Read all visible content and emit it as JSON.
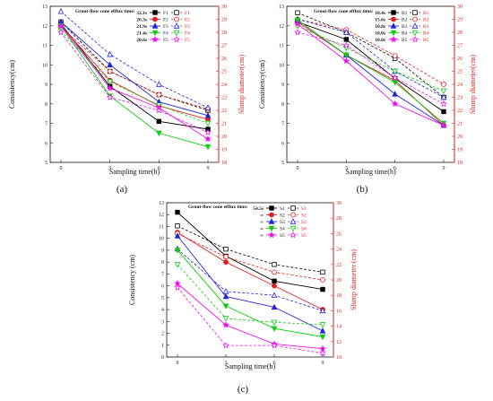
{
  "chart_data": [
    {
      "type": "line",
      "caption": "(a)",
      "xlabel": "Sampling time(h)",
      "ylabel": "Consistency(cm)",
      "y2label": "Slump diameter(cm)",
      "x": [
        0,
        3,
        6,
        9
      ],
      "xticks": [
        "0",
        "3",
        "6",
        "9"
      ],
      "ylim": [
        5,
        13
      ],
      "yticks": [
        "5",
        "6",
        "7",
        "8",
        "9",
        "10",
        "11",
        "12",
        "13"
      ],
      "y2lim": [
        18,
        30
      ],
      "y2ticks": [
        "18",
        "19",
        "20",
        "21",
        "22",
        "23",
        "24",
        "25",
        "26",
        "27",
        "28",
        "29",
        "30"
      ],
      "legend": {
        "title": "Grout-flow cone efflux time:",
        "times": [
          "32.1s",
          "26.3s",
          "21.9s",
          "21.4s",
          "20.6s"
        ],
        "placement": "top-right"
      },
      "series": [
        {
          "name": "F1",
          "color": "#000000",
          "marker": "square",
          "consistency": [
            12.1,
            8.9,
            7.1,
            6.7
          ],
          "slump": [
            28.8,
            25.0,
            23.2,
            22.0
          ]
        },
        {
          "name": "F2",
          "color": "#e02020",
          "marker": "circle",
          "consistency": [
            12.0,
            9.2,
            7.9,
            7.2
          ],
          "slump": [
            28.4,
            25.0,
            23.2,
            22.1
          ]
        },
        {
          "name": "F3",
          "color": "#2222dd",
          "marker": "triangle-up",
          "consistency": [
            12.2,
            10.0,
            8.1,
            7.4
          ],
          "slump": [
            29.6,
            26.3,
            24.0,
            22.2
          ]
        },
        {
          "name": "F4",
          "color": "#11cc11",
          "marker": "triangle-down",
          "consistency": [
            12.0,
            8.4,
            6.5,
            5.8
          ],
          "slump": [
            28.1,
            24.2,
            22.4,
            21.0
          ]
        },
        {
          "name": "F5",
          "color": "#ee11ee",
          "marker": "star",
          "consistency": [
            12.0,
            8.8,
            7.8,
            6.2
          ],
          "slump": [
            28.0,
            23.0,
            22.0,
            20.3
          ]
        }
      ]
    },
    {
      "type": "line",
      "caption": "(b)",
      "xlabel": "Sampling time(h)",
      "ylabel": "Consistency(cm)",
      "y2label": "Slump diameter(cm)",
      "x": [
        0,
        3,
        6,
        9
      ],
      "xticks": [
        "0",
        "3",
        "6",
        "9"
      ],
      "ylim": [
        5,
        13
      ],
      "yticks": [
        "5",
        "6",
        "7",
        "8",
        "9",
        "10",
        "11",
        "12",
        "13"
      ],
      "y2lim": [
        18,
        30
      ],
      "y2ticks": [
        "18",
        "19",
        "20",
        "21",
        "22",
        "23",
        "24",
        "25",
        "26",
        "27",
        "28",
        "29",
        "30"
      ],
      "legend": {
        "title": "Grout-flow cone efflux time:",
        "times": [
          "18.4s",
          "15.6s",
          "10.8s",
          "10.0s",
          "10.0s"
        ],
        "placement": "top-right"
      },
      "series": [
        {
          "name": "B1",
          "color": "#000000",
          "marker": "square",
          "consistency": [
            12.2,
            11.3,
            9.3,
            7.6
          ],
          "slump": [
            29.5,
            28.0,
            26.0,
            23.0
          ]
        },
        {
          "name": "B2",
          "color": "#e02020",
          "marker": "circle",
          "consistency": [
            12.2,
            10.5,
            9.2,
            6.9
          ],
          "slump": [
            29.0,
            28.2,
            26.2,
            24.0
          ]
        },
        {
          "name": "B3",
          "color": "#2222dd",
          "marker": "triangle-up",
          "consistency": [
            12.3,
            10.5,
            8.5,
            6.9
          ],
          "slump": [
            29.0,
            28.0,
            25.0,
            23.0
          ]
        },
        {
          "name": "B4",
          "color": "#11cc11",
          "marker": "triangle-down",
          "consistency": [
            12.3,
            10.5,
            9.1,
            7.0
          ],
          "slump": [
            28.5,
            26.8,
            25.0,
            23.5
          ]
        },
        {
          "name": "B5",
          "color": "#ee11ee",
          "marker": "star",
          "consistency": [
            12.1,
            10.2,
            8.0,
            6.9
          ],
          "slump": [
            28.0,
            27.0,
            24.5,
            22.5
          ]
        }
      ]
    },
    {
      "type": "line",
      "caption": "(c)",
      "xlabel": "Sampling time(h)",
      "ylabel": "Consistency (cm)",
      "y2label": "Slump diameter (cm)",
      "x": [
        0,
        3,
        6,
        9
      ],
      "xticks": [
        "0",
        "3",
        "6",
        "9"
      ],
      "ylim": [
        0,
        13
      ],
      "yticks": [
        "0",
        "1",
        "2",
        "3",
        "4",
        "5",
        "6",
        "7",
        "8",
        "9",
        "10",
        "11",
        "12",
        "13"
      ],
      "y2lim": [
        10,
        30
      ],
      "y2ticks": [
        "10",
        "12",
        "14",
        "16",
        "18",
        "20",
        "22",
        "24",
        "26",
        "28",
        "30"
      ],
      "legend": {
        "title": "Grout-flow cone efflux time:",
        "times": [
          "54.5s",
          "∞",
          "∞",
          "∞",
          "∞"
        ],
        "placement": "top-right"
      },
      "series": [
        {
          "name": "S1",
          "color": "#000000",
          "marker": "square",
          "consistency": [
            12.2,
            8.5,
            6.4,
            5.7
          ],
          "slump": [
            27.0,
            24.0,
            22.0,
            21.0
          ]
        },
        {
          "name": "S2",
          "color": "#e02020",
          "marker": "circle",
          "consistency": [
            10.5,
            8.0,
            6.0,
            4.0
          ],
          "slump": [
            26.0,
            23.0,
            21.0,
            20.0
          ]
        },
        {
          "name": "S3",
          "color": "#2222dd",
          "marker": "triangle-up",
          "consistency": [
            10.2,
            5.1,
            4.2,
            2.2
          ],
          "slump": [
            24.0,
            18.5,
            18.0,
            16.0
          ]
        },
        {
          "name": "S4",
          "color": "#11cc11",
          "marker": "triangle-down",
          "consistency": [
            9.0,
            4.3,
            2.4,
            1.7
          ],
          "slump": [
            22.0,
            15.0,
            14.5,
            14.2
          ]
        },
        {
          "name": "S5",
          "color": "#ee11ee",
          "marker": "star",
          "consistency": [
            6.2,
            2.7,
            1.1,
            0.7
          ],
          "slump": [
            19.0,
            11.5,
            11.5,
            10.5
          ]
        }
      ]
    }
  ]
}
